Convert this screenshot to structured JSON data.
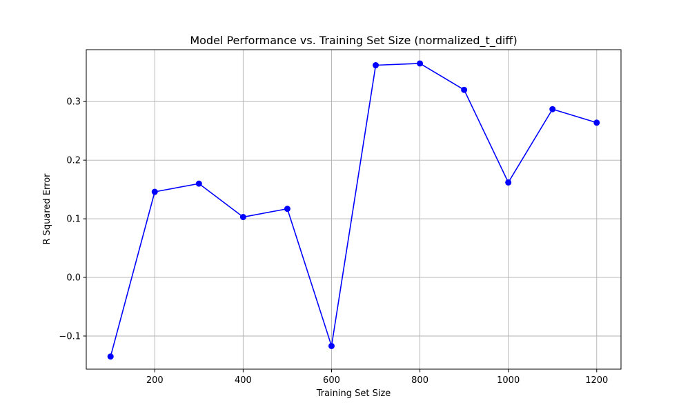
{
  "chart_data": {
    "type": "line",
    "title": "Model Performance vs. Training Set Size (normalized_t_diff)",
    "xlabel": "Training Set Size",
    "ylabel": "R Squared Error",
    "xlim": [
      45,
      1255
    ],
    "ylim": [
      -0.1565,
      0.3885
    ],
    "xticks": [
      200,
      400,
      600,
      800,
      1000,
      1200
    ],
    "yticks": [
      -0.1,
      0.0,
      0.1,
      0.2,
      0.3
    ],
    "xtick_labels": [
      "200",
      "400",
      "600",
      "800",
      "1000",
      "1200"
    ],
    "ytick_labels": [
      "−0.1",
      "0.0",
      "0.1",
      "0.2",
      "0.3"
    ],
    "grid": true,
    "series": [
      {
        "color": "#0000ff",
        "marker": "circle",
        "x": [
          100,
          200,
          300,
          400,
          500,
          600,
          700,
          800,
          900,
          1000,
          1100,
          1200
        ],
        "y": [
          -0.135,
          0.146,
          0.16,
          0.103,
          0.117,
          -0.117,
          0.362,
          0.365,
          0.32,
          0.162,
          0.287,
          0.264
        ]
      }
    ]
  }
}
